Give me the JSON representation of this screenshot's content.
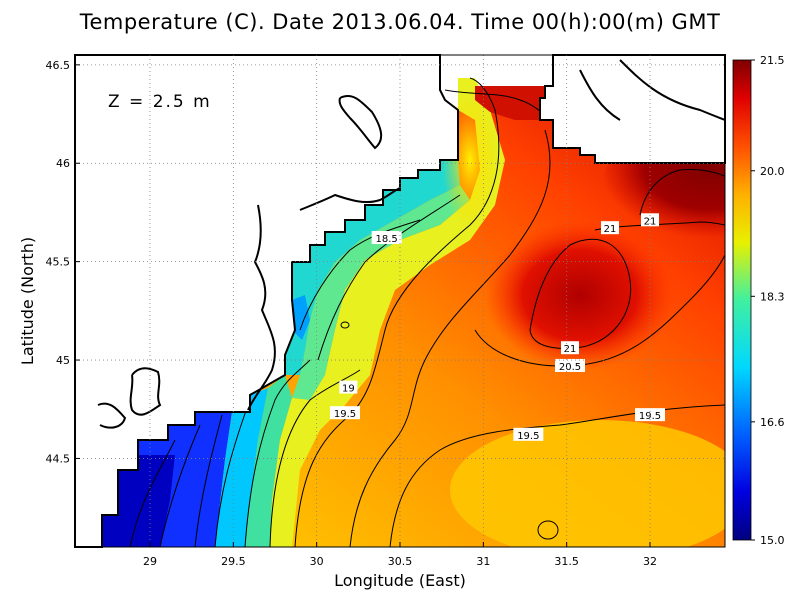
{
  "title": "Temperature (C). Date 2013.06.04. Time 00(h):00(m) GMT",
  "depth_label": "Z = 2.5 m",
  "x_axis": {
    "label": "Longitude (East)",
    "ticks": [
      29,
      29.5,
      30,
      30.5,
      31,
      31.5,
      32
    ],
    "tick_labels": [
      "29",
      "29.5",
      "30",
      "30.5",
      "31",
      "31.5",
      "32"
    ],
    "range": [
      28.55,
      32.45
    ]
  },
  "y_axis": {
    "label": "Latitude (North)",
    "ticks": [
      44.5,
      45,
      45.5,
      46,
      46.5
    ],
    "tick_labels": [
      "44.5",
      "45",
      "45.5",
      "46",
      "46.5"
    ],
    "range": [
      44.05,
      46.55
    ]
  },
  "colorbar": {
    "ticks": [
      15.0,
      16.6,
      18.3,
      20.0,
      21.5
    ],
    "tick_labels": [
      "15.0",
      "16.6",
      "18.3",
      "20.0",
      "21.5"
    ],
    "range": [
      15.0,
      21.5
    ],
    "colors": [
      "#000080",
      "#0000e0",
      "#0060ff",
      "#00d8ff",
      "#40f0a0",
      "#e8f000",
      "#ffb000",
      "#ff5000",
      "#e00000",
      "#800000"
    ]
  },
  "contour_labels": [
    {
      "text": "18.5",
      "lon": 30.42,
      "lat": 45.62
    },
    {
      "text": "19",
      "lon": 30.19,
      "lat": 44.86
    },
    {
      "text": "19.5",
      "lon": 30.17,
      "lat": 44.73
    },
    {
      "text": "19.5",
      "lon": 31.27,
      "lat": 44.62
    },
    {
      "text": "19.5",
      "lon": 32.0,
      "lat": 44.72
    },
    {
      "text": "20.5",
      "lon": 31.52,
      "lat": 44.97
    },
    {
      "text": "21",
      "lon": 31.52,
      "lat": 45.06
    },
    {
      "text": "21",
      "lon": 31.76,
      "lat": 45.67
    },
    {
      "text": "21",
      "lon": 32.0,
      "lat": 45.71
    }
  ],
  "grid": true
}
